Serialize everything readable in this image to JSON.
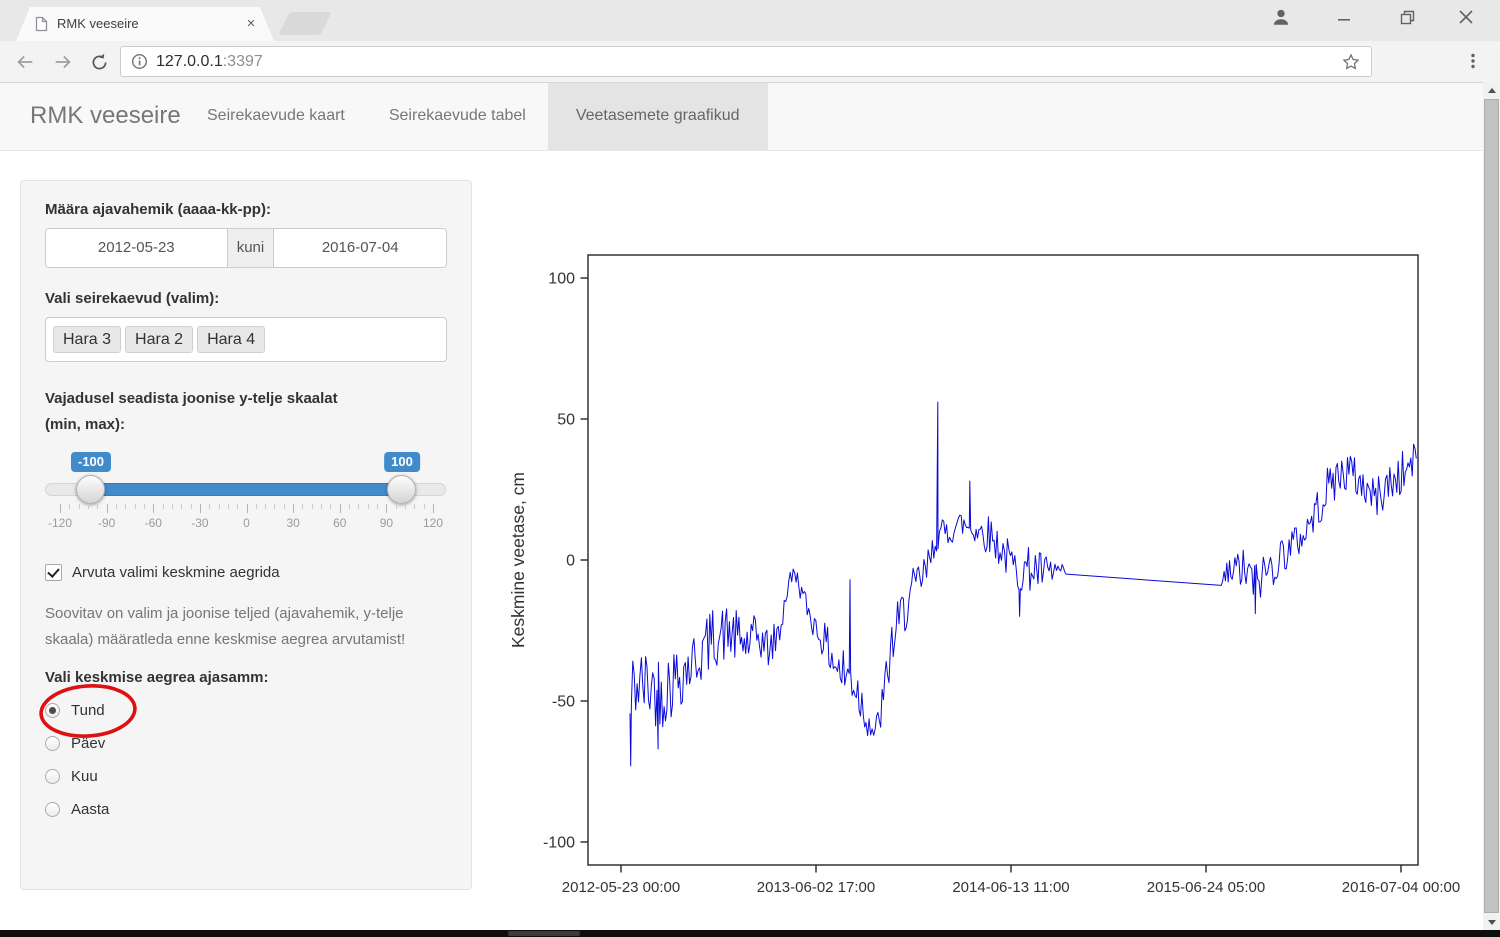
{
  "browser": {
    "tab_title": "RMK veeseire",
    "url": {
      "host": "127.0.0.1",
      "port": ":3397"
    }
  },
  "navbar": {
    "brand": "RMK veeseire",
    "tabs": [
      {
        "label": "Seirekaevude kaart",
        "active": false
      },
      {
        "label": "Seirekaevude tabel",
        "active": false
      },
      {
        "label": "Veetasemete graafikud",
        "active": true
      }
    ]
  },
  "sidebar": {
    "date_label": "Määra ajavahemik (aaaa-kk-pp):",
    "date_start": "2012-05-23",
    "date_sep": "kuni",
    "date_end": "2016-07-04",
    "wells_label": "Vali seirekaevud (valim):",
    "wells": [
      "Hara 3",
      "Hara 2",
      "Hara 4"
    ],
    "slider_label": "Vajadusel seadista joonise y-telje skaalat\n(min, max):",
    "slider": {
      "from_label": "-100",
      "to_label": "100",
      "ticks": [
        "-120",
        "-90",
        "-60",
        "-30",
        "0",
        "30",
        "60",
        "90",
        "120"
      ]
    },
    "checkbox_label": "Arvuta valimi keskmine aegrida",
    "checkbox_checked": true,
    "note": "Soovitav on valim ja joonise teljed (ajavahemik, y-telje skaala) määratleda enne keskmise aegrea arvutamist!",
    "radio_label": "Vali keskmise aegrea ajasamm:",
    "radios": [
      {
        "label": "Tund",
        "selected": true,
        "circled": true
      },
      {
        "label": "Päev",
        "selected": false,
        "circled": false
      },
      {
        "label": "Kuu",
        "selected": false,
        "circled": false
      },
      {
        "label": "Aasta",
        "selected": false,
        "circled": false
      }
    ],
    "annotation_color": "#dd1111"
  },
  "chart_data": {
    "type": "line",
    "title": "",
    "xlabel": "",
    "ylabel": "Keskmine veetase, cm",
    "x_ticks": [
      "2012-05-23 00:00",
      "2013-06-02 17:00",
      "2014-06-13 11:00",
      "2015-06-24 05:00",
      "2016-07-04 00:00"
    ],
    "y_ticks": [
      100,
      50,
      0,
      -50,
      -100
    ],
    "ylim": [
      -108,
      108
    ],
    "grid": false,
    "legend": "none",
    "line_color": "#0a0ad8",
    "noise_seed": 42,
    "noise_step": 0.0017,
    "series": [
      {
        "name": "Keskmine veetase",
        "keypoints": [
          [
            0.0506,
            -55,
            3
          ],
          [
            0.054,
            -45,
            13
          ],
          [
            0.066,
            -44,
            13
          ],
          [
            0.09,
            -46,
            14
          ],
          [
            0.112,
            -40,
            12
          ],
          [
            0.131,
            -35,
            11
          ],
          [
            0.152,
            -27,
            11
          ],
          [
            0.172,
            -26,
            10
          ],
          [
            0.19,
            -30,
            9
          ],
          [
            0.205,
            -27,
            8
          ],
          [
            0.219,
            -32,
            7
          ],
          [
            0.231,
            -25,
            6
          ],
          [
            0.24,
            -10,
            5
          ],
          [
            0.249,
            -4,
            3
          ],
          [
            0.259,
            -13,
            4
          ],
          [
            0.271,
            -22,
            5
          ],
          [
            0.287,
            -30,
            7
          ],
          [
            0.304,
            -40,
            10
          ],
          [
            0.32,
            -42,
            12
          ],
          [
            0.335,
            -55,
            7
          ],
          [
            0.346,
            -62,
            5
          ],
          [
            0.356,
            -50,
            9
          ],
          [
            0.366,
            -30,
            10
          ],
          [
            0.38,
            -18,
            9
          ],
          [
            0.395,
            -10,
            9
          ],
          [
            0.408,
            -4,
            7
          ],
          [
            0.42,
            8,
            5
          ],
          [
            0.432,
            10,
            6
          ],
          [
            0.448,
            13,
            5
          ],
          [
            0.466,
            11,
            6
          ],
          [
            0.484,
            9,
            7
          ],
          [
            0.5,
            3,
            7
          ],
          [
            0.516,
            -4,
            8
          ],
          [
            0.534,
            -3,
            8
          ],
          [
            0.552,
            -5,
            7
          ],
          [
            0.568,
            -4,
            5
          ],
          [
            0.576,
            -5,
            0
          ],
          [
            0.763,
            -9,
            0
          ],
          [
            0.768,
            -6,
            6
          ],
          [
            0.786,
            -3,
            8
          ],
          [
            0.805,
            -8,
            8
          ],
          [
            0.824,
            -2,
            8
          ],
          [
            0.843,
            4,
            7
          ],
          [
            0.86,
            8,
            6
          ],
          [
            0.877,
            17,
            7
          ],
          [
            0.896,
            28,
            8
          ],
          [
            0.915,
            32,
            8
          ],
          [
            0.932,
            27,
            7
          ],
          [
            0.949,
            22,
            7
          ],
          [
            0.966,
            27,
            8
          ],
          [
            0.983,
            31,
            8
          ],
          [
            0.998,
            36,
            6
          ]
        ],
        "spikes": [
          [
            0.0515,
            -73
          ],
          [
            0.0845,
            -67
          ],
          [
            0.3157,
            -7
          ],
          [
            0.4215,
            56
          ],
          [
            0.46,
            28
          ],
          [
            0.52,
            -20
          ],
          [
            0.804,
            -19
          ]
        ]
      }
    ]
  }
}
